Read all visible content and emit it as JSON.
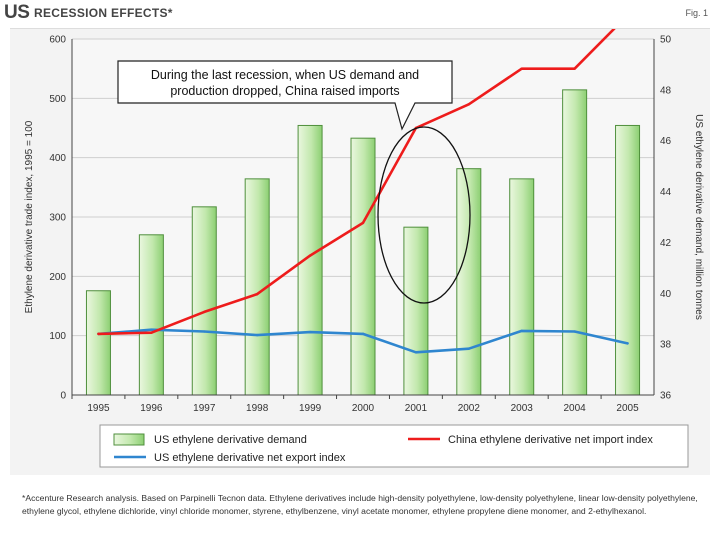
{
  "header": {
    "title_main": "US",
    "title_sub": "RECESSION EFFECTS*",
    "fig_label": "Fig. 1"
  },
  "callout": {
    "line1": "During the last recession, when US demand and",
    "line2": "production dropped, China raised imports"
  },
  "footnote": "*Accenture Research analysis. Based on Parpinelli Tecnon data. Ethylene derivatives include high-density polyethylene, low-density polyethylene, linear low-density polyethylene, ethylene glycol, ethylene dichloride, vinyl chloride monomer, styrene, ethylbenzene, vinyl acetate monomer, ethylene propylene diene monomer, and 2-ethylhexanol.",
  "colors": {
    "bar_fill_light": "#eaf7df",
    "bar_fill_dark": "#8ccf72",
    "bar_stroke": "#4f8f3c",
    "china_line": "#ee1c1c",
    "export_line": "#2f86cf",
    "panel_bg": "#f3f3f3"
  },
  "chart_data": {
    "type": "bar",
    "categories": [
      "1995",
      "1996",
      "1997",
      "1998",
      "1999",
      "2000",
      "2001",
      "2002",
      "2003",
      "2004",
      "2005"
    ],
    "series": [
      {
        "name": "US ethylene derivative demand",
        "type": "bar",
        "axis": "right",
        "values": [
          40.1,
          42.3,
          43.4,
          44.5,
          46.6,
          46.1,
          42.6,
          44.9,
          44.5,
          48.0,
          46.6
        ]
      },
      {
        "name": "China ethylene derivative net import index",
        "type": "line",
        "axis": "left",
        "values": [
          103,
          105,
          140,
          170,
          235,
          290,
          450,
          490,
          550,
          550,
          640
        ]
      },
      {
        "name": "US ethylene derivative net export index",
        "type": "line",
        "axis": "left",
        "values": [
          103,
          110,
          107,
          101,
          106,
          103,
          72,
          78,
          108,
          107,
          87
        ]
      }
    ],
    "ylabel": "Ethylene derivative trade index, 1995 = 100",
    "y2label": "US ethylene derivative demand, million tonnes",
    "ylim": [
      0,
      600
    ],
    "y2lim": [
      36,
      50
    ],
    "yticks": [
      "0",
      "100",
      "200",
      "300",
      "400",
      "500",
      "600"
    ],
    "y2ticks": [
      "36",
      "38",
      "40",
      "42",
      "44",
      "46",
      "48",
      "50"
    ],
    "grid": true,
    "legend_position": "bottom"
  }
}
